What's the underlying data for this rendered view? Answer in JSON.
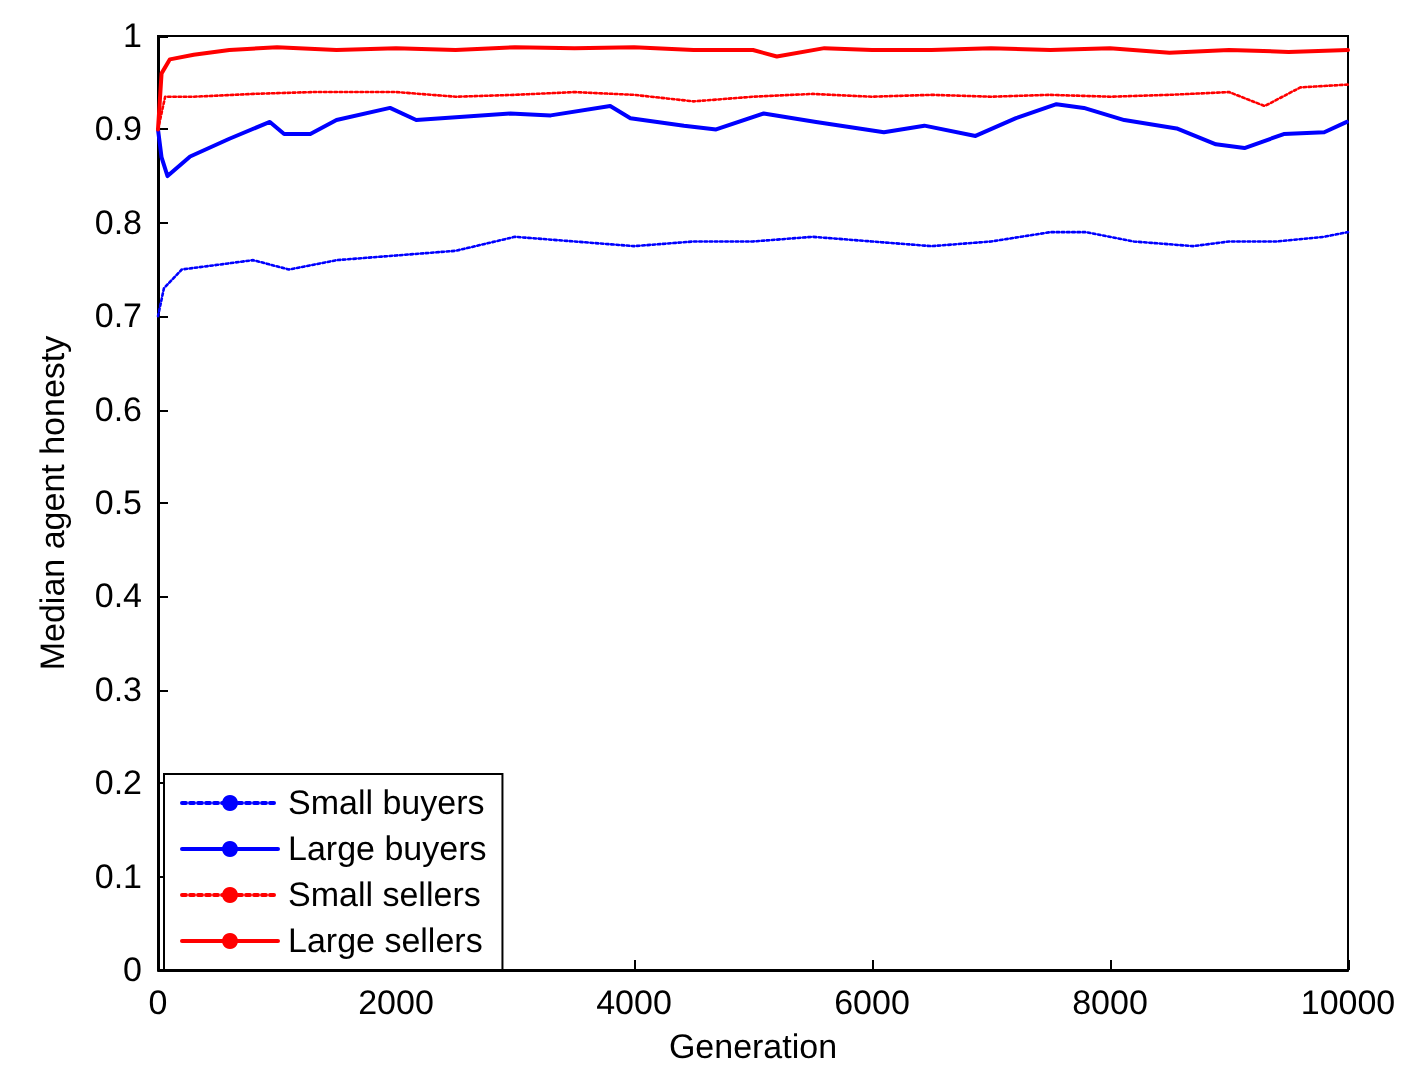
{
  "chart_data": {
    "type": "line",
    "xlabel": "Generation",
    "ylabel": "Median agent honesty",
    "xlim": [
      0,
      10000
    ],
    "xticks": [
      0,
      2000,
      4000,
      6000,
      8000,
      10000
    ],
    "ylim": [
      0,
      1
    ],
    "yticks": [
      0,
      0.1,
      0.2,
      0.3,
      0.4,
      0.5,
      0.6,
      0.7,
      0.8,
      0.9,
      1
    ],
    "grid": false,
    "legend": "bottom left",
    "marker": "none",
    "series": [
      {
        "name": "Small buyers",
        "color": "#0000ff",
        "line_style": "dotted",
        "x": [
          0,
          50,
          200,
          500,
          800,
          1100,
          1500,
          2000,
          2500,
          3000,
          3500,
          4000,
          4500,
          5000,
          5500,
          6000,
          6500,
          7000,
          7500,
          7800,
          8200,
          8700,
          9000,
          9400,
          9800,
          10000
        ],
        "values": [
          0.7,
          0.73,
          0.75,
          0.755,
          0.76,
          0.75,
          0.76,
          0.765,
          0.77,
          0.785,
          0.78,
          0.775,
          0.78,
          0.78,
          0.785,
          0.78,
          0.775,
          0.78,
          0.79,
          0.79,
          0.78,
          0.775,
          0.78,
          0.78,
          0.785,
          0.79
        ]
      },
      {
        "name": "Large buyers",
        "color": "#0000ff",
        "line_style": "solid",
        "x": [
          0,
          30,
          80,
          270,
          600,
          940,
          1060,
          1280,
          1500,
          1950,
          2170,
          2960,
          3300,
          3800,
          3970,
          4420,
          4690,
          5090,
          5530,
          6100,
          6440,
          6870,
          7210,
          7550,
          7780,
          8120,
          8560,
          8890,
          9130,
          9460,
          9800,
          9990
        ],
        "values": [
          0.9,
          0.87,
          0.85,
          0.871,
          0.89,
          0.908,
          0.895,
          0.895,
          0.91,
          0.923,
          0.91,
          0.917,
          0.915,
          0.925,
          0.912,
          0.904,
          0.9,
          0.917,
          0.908,
          0.897,
          0.904,
          0.893,
          0.912,
          0.927,
          0.923,
          0.91,
          0.901,
          0.884,
          0.88,
          0.895,
          0.897,
          0.908
        ]
      },
      {
        "name": "Small sellers",
        "color": "#ff0000",
        "line_style": "dotted",
        "x": [
          0,
          60,
          300,
          800,
          1300,
          2000,
          2500,
          3000,
          3500,
          4000,
          4500,
          5000,
          5500,
          6000,
          6500,
          7000,
          7500,
          8000,
          8500,
          9000,
          9300,
          9600,
          10000
        ],
        "values": [
          0.9,
          0.935,
          0.935,
          0.938,
          0.94,
          0.94,
          0.935,
          0.937,
          0.94,
          0.937,
          0.93,
          0.935,
          0.938,
          0.935,
          0.937,
          0.935,
          0.937,
          0.935,
          0.937,
          0.94,
          0.925,
          0.945,
          0.948
        ]
      },
      {
        "name": "Large sellers",
        "color": "#ff0000",
        "line_style": "solid",
        "x": [
          0,
          30,
          100,
          300,
          600,
          1000,
          1500,
          2000,
          2500,
          3000,
          3500,
          4000,
          4500,
          5000,
          5200,
          5600,
          6000,
          6500,
          7000,
          7500,
          8000,
          8500,
          9000,
          9500,
          10000
        ],
        "values": [
          0.9,
          0.96,
          0.975,
          0.98,
          0.985,
          0.988,
          0.985,
          0.987,
          0.985,
          0.988,
          0.987,
          0.988,
          0.985,
          0.985,
          0.978,
          0.987,
          0.985,
          0.985,
          0.987,
          0.985,
          0.987,
          0.982,
          0.985,
          0.983,
          0.985
        ]
      }
    ]
  }
}
